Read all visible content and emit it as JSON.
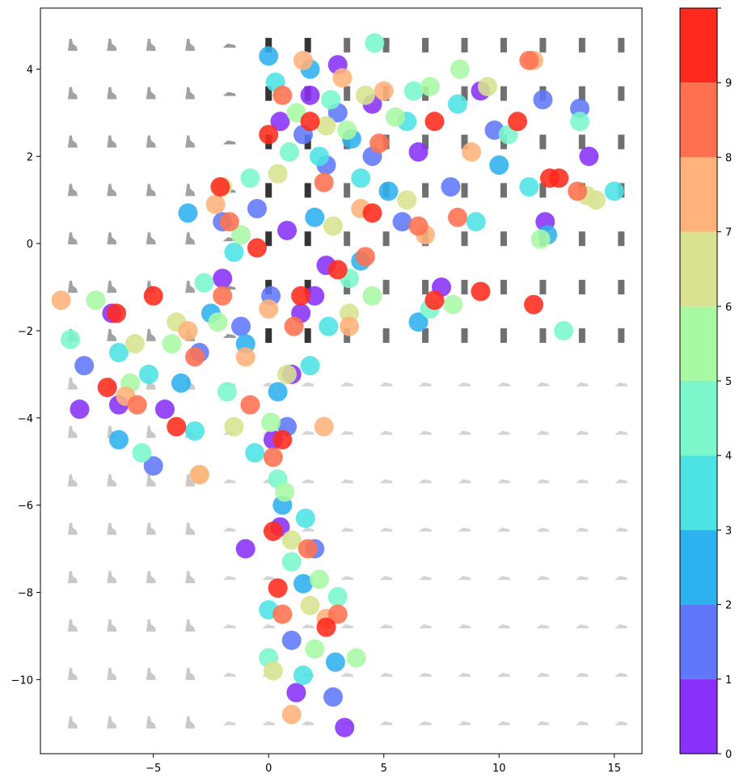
{
  "chart_data": {
    "type": "scatter",
    "title": "",
    "xlabel": "",
    "ylabel": "",
    "xlim": [
      -9.9,
      16.2
    ],
    "ylim": [
      -11.7,
      5.4
    ],
    "x_ticks": [
      -5,
      0,
      5,
      10,
      15
    ],
    "x_tick_labels": [
      "−5",
      "0",
      "5",
      "10",
      "15"
    ],
    "y_ticks": [
      4,
      2,
      0,
      -2,
      -4,
      -6,
      -8,
      -10
    ],
    "y_tick_labels": [
      "4",
      "2",
      "0",
      "−2",
      "−4",
      "−6",
      "−8",
      "−10"
    ],
    "colorbar": {
      "ticks": [
        0,
        1,
        2,
        3,
        4,
        5,
        6,
        7,
        8,
        9
      ],
      "tick_labels": [
        "0",
        "1",
        "2",
        "3",
        "4",
        "5",
        "6",
        "7",
        "8",
        "9"
      ],
      "range": [
        0,
        10
      ],
      "colors": [
        "#8931f8",
        "#5f77fa",
        "#2eb1ef",
        "#4de3e4",
        "#7af7cb",
        "#a9f8a4",
        "#d8e290",
        "#ffb27a",
        "#ff714e",
        "#ff2a1d"
      ]
    },
    "grid": false,
    "legend": "colorbar-right",
    "thumbnail_grid": {
      "x_start": -8.5,
      "x_step": 1.7,
      "cols": 15,
      "y_start": 4.55,
      "y_step": -1.11,
      "rows": 15
    },
    "clusters": [
      {
        "label": 0,
        "points": [
          [
            0.5,
            2.8
          ],
          [
            1.8,
            3.4
          ],
          [
            3.0,
            4.1
          ],
          [
            4.5,
            3.2
          ],
          [
            6.5,
            2.1
          ],
          [
            0.8,
            0.3
          ],
          [
            2.0,
            -1.2
          ],
          [
            1.0,
            -3.0
          ],
          [
            -4.5,
            -3.8
          ],
          [
            -6.5,
            -3.7
          ],
          [
            -8.2,
            -3.8
          ],
          [
            0.5,
            -6.5
          ],
          [
            1.2,
            -10.3
          ],
          [
            3.3,
            -11.1
          ],
          [
            9.2,
            3.5
          ],
          [
            12.0,
            0.5
          ],
          [
            13.9,
            2.0
          ],
          [
            -6.8,
            -1.6
          ],
          [
            0.2,
            -4.5
          ],
          [
            2.5,
            -0.5
          ],
          [
            7.5,
            -1.0
          ],
          [
            -2.0,
            -0.8
          ],
          [
            1.4,
            -1.6
          ],
          [
            -1.0,
            -7.0
          ]
        ]
      },
      {
        "label": 1,
        "points": [
          [
            1.5,
            2.5
          ],
          [
            3.0,
            3.0
          ],
          [
            4.5,
            2.0
          ],
          [
            5.8,
            0.5
          ],
          [
            7.9,
            1.3
          ],
          [
            -0.5,
            0.8
          ],
          [
            -2.0,
            0.5
          ],
          [
            -3.0,
            -2.5
          ],
          [
            -5.0,
            -5.1
          ],
          [
            -8.0,
            -2.8
          ],
          [
            0.8,
            -4.2
          ],
          [
            2.0,
            -7.0
          ],
          [
            2.8,
            -10.4
          ],
          [
            9.8,
            2.6
          ],
          [
            11.9,
            3.3
          ],
          [
            13.5,
            3.1
          ],
          [
            0.1,
            -1.2
          ],
          [
            -1.2,
            -1.9
          ],
          [
            1.0,
            -9.1
          ],
          [
            2.5,
            1.8
          ]
        ]
      },
      {
        "label": 2,
        "points": [
          [
            0.0,
            4.3
          ],
          [
            1.8,
            4.0
          ],
          [
            3.6,
            2.4
          ],
          [
            5.2,
            1.2
          ],
          [
            10.0,
            1.8
          ],
          [
            12.1,
            0.2
          ],
          [
            -2.5,
            -1.6
          ],
          [
            -3.8,
            -3.2
          ],
          [
            -6.5,
            -4.5
          ],
          [
            -3.5,
            0.7
          ],
          [
            0.6,
            -6.0
          ],
          [
            1.5,
            -7.8
          ],
          [
            2.9,
            -9.6
          ],
          [
            0.4,
            -3.4
          ],
          [
            4.0,
            -0.4
          ],
          [
            6.5,
            -1.8
          ],
          [
            -1.0,
            -2.3
          ],
          [
            2.0,
            0.6
          ]
        ]
      },
      {
        "label": 3,
        "points": [
          [
            0.3,
            3.7
          ],
          [
            2.2,
            2.0
          ],
          [
            4.0,
            1.5
          ],
          [
            6.0,
            2.8
          ],
          [
            8.2,
            3.2
          ],
          [
            11.3,
            1.3
          ],
          [
            15.0,
            1.2
          ],
          [
            -1.5,
            -0.2
          ],
          [
            -3.2,
            -4.3
          ],
          [
            -5.2,
            -3.0
          ],
          [
            -6.5,
            -2.5
          ],
          [
            1.6,
            -6.3
          ],
          [
            0.0,
            -8.4
          ],
          [
            1.5,
            -9.9
          ],
          [
            9.0,
            0.5
          ],
          [
            2.6,
            -1.9
          ],
          [
            -0.6,
            -4.8
          ],
          [
            1.8,
            -2.8
          ]
        ]
      },
      {
        "label": 4,
        "points": [
          [
            0.9,
            2.1
          ],
          [
            2.7,
            3.3
          ],
          [
            4.6,
            4.6
          ],
          [
            6.3,
            3.5
          ],
          [
            10.4,
            2.5
          ],
          [
            13.5,
            2.8
          ],
          [
            -0.8,
            1.5
          ],
          [
            -2.8,
            -0.9
          ],
          [
            -5.5,
            -4.8
          ],
          [
            -8.6,
            -2.2
          ],
          [
            0.4,
            -5.4
          ],
          [
            1.0,
            -7.3
          ],
          [
            3.0,
            -8.1
          ],
          [
            0.0,
            -9.5
          ],
          [
            3.5,
            -0.8
          ],
          [
            7.0,
            -1.5
          ],
          [
            12.8,
            -2.0
          ],
          [
            -1.8,
            -3.4
          ]
        ]
      },
      {
        "label": 5,
        "points": [
          [
            1.2,
            3.0
          ],
          [
            3.4,
            2.6
          ],
          [
            5.5,
            2.9
          ],
          [
            7.0,
            3.6
          ],
          [
            8.3,
            4.0
          ],
          [
            11.8,
            0.1
          ],
          [
            -1.2,
            0.2
          ],
          [
            -2.2,
            -1.8
          ],
          [
            -4.2,
            -2.3
          ],
          [
            -7.5,
            -1.3
          ],
          [
            -6.0,
            -3.2
          ],
          [
            0.7,
            -5.7
          ],
          [
            2.2,
            -7.7
          ],
          [
            2.0,
            -9.3
          ],
          [
            3.8,
            -9.5
          ],
          [
            4.5,
            -1.2
          ],
          [
            8.0,
            -1.4
          ],
          [
            0.1,
            -4.1
          ]
        ]
      },
      {
        "label": 6,
        "points": [
          [
            0.4,
            1.6
          ],
          [
            2.5,
            2.7
          ],
          [
            4.2,
            3.4
          ],
          [
            6.0,
            1.0
          ],
          [
            9.5,
            3.6
          ],
          [
            13.8,
            1.1
          ],
          [
            14.2,
            1.0
          ],
          [
            -2.0,
            1.3
          ],
          [
            -4.0,
            -1.8
          ],
          [
            -5.8,
            -2.3
          ],
          [
            -3.0,
            -5.3
          ],
          [
            1.0,
            -6.8
          ],
          [
            0.2,
            -9.8
          ],
          [
            1.8,
            -8.3
          ],
          [
            3.5,
            -1.6
          ],
          [
            0.8,
            -3.0
          ],
          [
            -1.5,
            -4.2
          ],
          [
            2.8,
            0.4
          ]
        ]
      },
      {
        "label": 7,
        "points": [
          [
            1.5,
            4.2
          ],
          [
            3.2,
            3.8
          ],
          [
            5.0,
            3.5
          ],
          [
            4.0,
            0.8
          ],
          [
            8.8,
            2.1
          ],
          [
            11.5,
            4.2
          ],
          [
            -2.3,
            0.9
          ],
          [
            -3.5,
            -2.0
          ],
          [
            -6.2,
            -3.5
          ],
          [
            -9.0,
            -1.3
          ],
          [
            -3.0,
            -5.3
          ],
          [
            1.0,
            -10.8
          ],
          [
            2.5,
            -8.6
          ],
          [
            0.0,
            -1.5
          ],
          [
            3.5,
            -1.9
          ],
          [
            6.8,
            0.2
          ],
          [
            -1.0,
            -2.6
          ],
          [
            2.4,
            -4.2
          ]
        ]
      },
      {
        "label": 8,
        "points": [
          [
            0.6,
            3.4
          ],
          [
            2.4,
            1.4
          ],
          [
            4.8,
            2.3
          ],
          [
            6.5,
            0.4
          ],
          [
            8.2,
            0.6
          ],
          [
            11.3,
            4.2
          ],
          [
            13.4,
            1.2
          ],
          [
            -1.7,
            0.5
          ],
          [
            -2.0,
            -1.2
          ],
          [
            -3.2,
            -2.6
          ],
          [
            -5.7,
            -3.7
          ],
          [
            0.2,
            -4.9
          ],
          [
            0.6,
            -8.5
          ],
          [
            1.7,
            -7.0
          ],
          [
            3.0,
            -8.5
          ],
          [
            1.1,
            -1.9
          ],
          [
            4.2,
            -0.3
          ],
          [
            -0.8,
            -3.7
          ]
        ]
      },
      {
        "label": 9,
        "points": [
          [
            0.0,
            2.5
          ],
          [
            1.8,
            2.8
          ],
          [
            4.5,
            0.7
          ],
          [
            7.2,
            2.8
          ],
          [
            10.8,
            2.8
          ],
          [
            12.2,
            1.5
          ],
          [
            -0.5,
            -0.1
          ],
          [
            -2.1,
            1.3
          ],
          [
            -4.0,
            -4.2
          ],
          [
            -5.0,
            -1.2
          ],
          [
            -6.6,
            -1.6
          ],
          [
            -7.0,
            -3.3
          ],
          [
            0.6,
            -4.5
          ],
          [
            0.2,
            -6.6
          ],
          [
            0.4,
            -7.9
          ],
          [
            2.5,
            -8.8
          ],
          [
            7.2,
            -1.3
          ],
          [
            9.2,
            -1.1
          ],
          [
            11.5,
            -1.4
          ],
          [
            12.6,
            1.5
          ],
          [
            1.4,
            -1.2
          ],
          [
            3.0,
            -0.6
          ]
        ]
      }
    ]
  }
}
